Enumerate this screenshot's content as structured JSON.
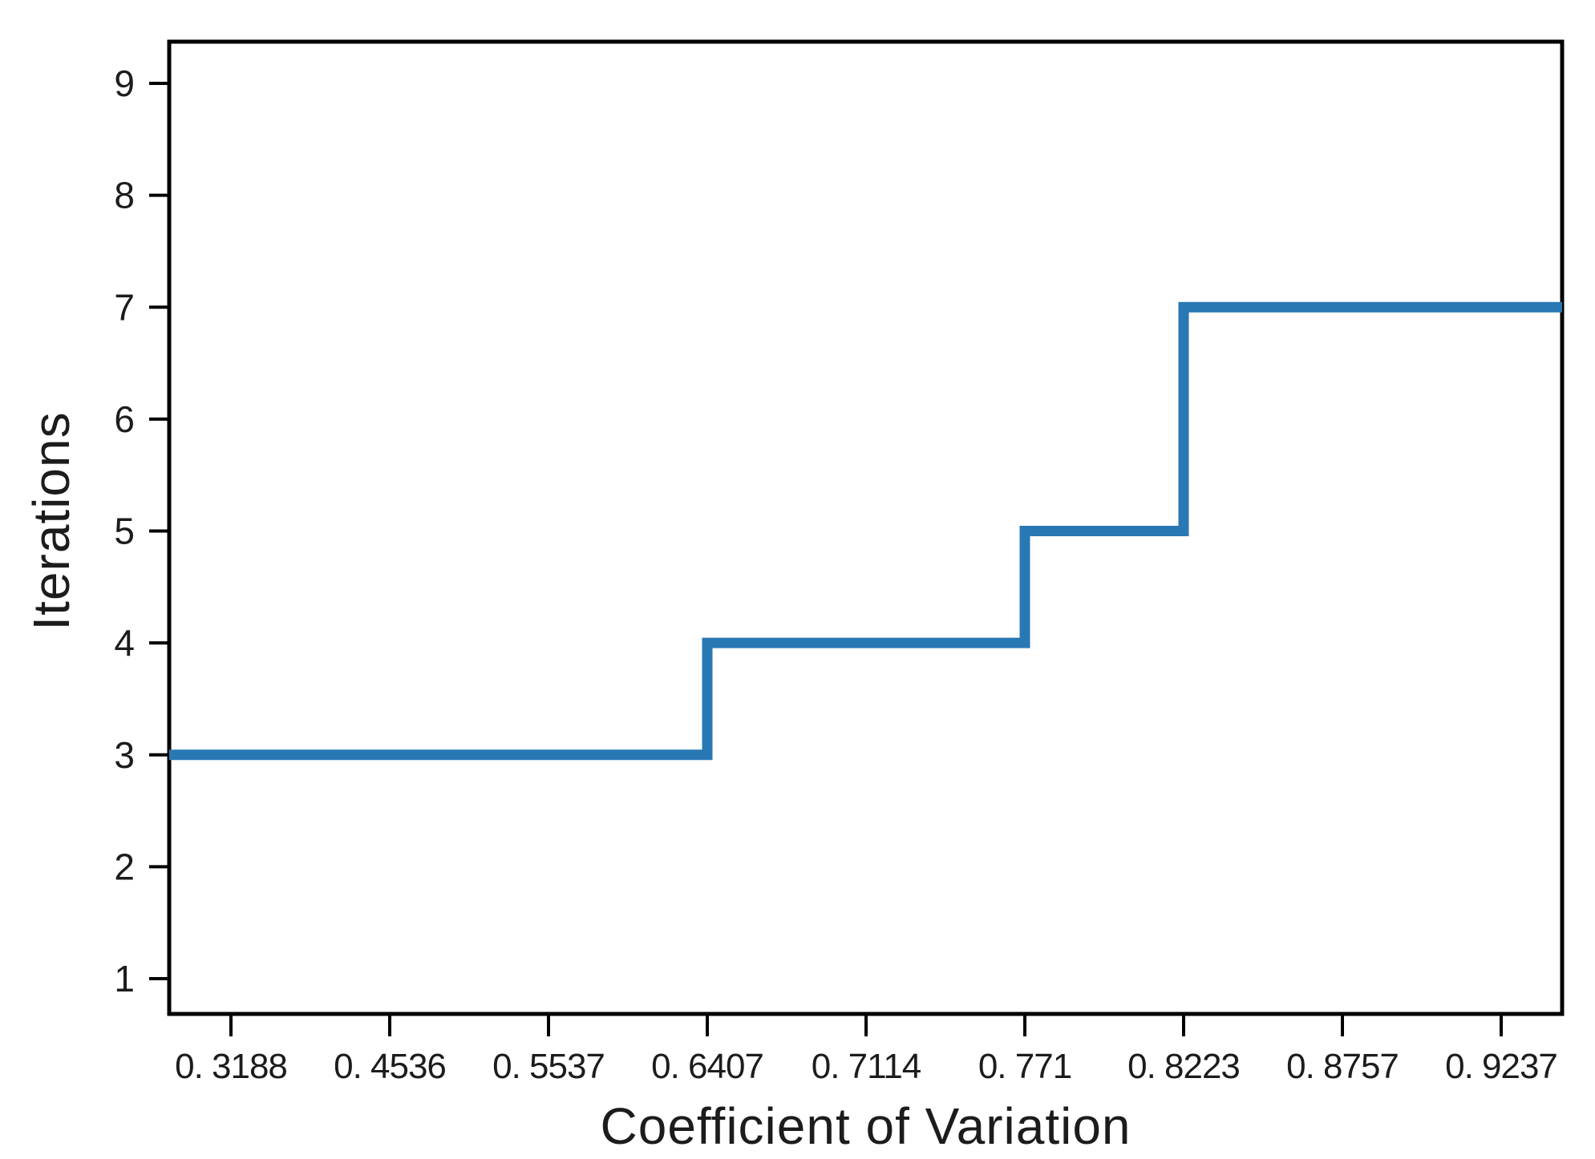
{
  "chart_data": {
    "type": "line",
    "subtype": "step-pre",
    "title": "",
    "xlabel": "Coefficient of Variation",
    "ylabel": "Iterations",
    "x": [
      0.3188,
      0.4536,
      0.5537,
      0.6407,
      0.7114,
      0.771,
      0.8223,
      0.8757,
      0.9237
    ],
    "y": [
      3,
      3,
      3,
      4,
      4,
      5,
      7,
      7,
      7
    ],
    "x_tick_labels": [
      "0. 3188",
      "0. 4536",
      "0. 5537",
      "0. 6407",
      "0. 7114",
      "0. 771",
      "0. 8223",
      "0. 8757",
      "0. 9237"
    ],
    "y_ticks": [
      1,
      2,
      3,
      4,
      5,
      6,
      7,
      8,
      9
    ],
    "ylim": [
      0.69,
      9.37
    ],
    "x_axis_type": "ordinal-even-spacing",
    "grid": false,
    "legend": "none",
    "line_extends_to_plot_edges": true,
    "colors": {
      "line": "#2878b4",
      "axis": "#000000",
      "text": "#1c1c1c",
      "background": "#ffffff"
    }
  }
}
